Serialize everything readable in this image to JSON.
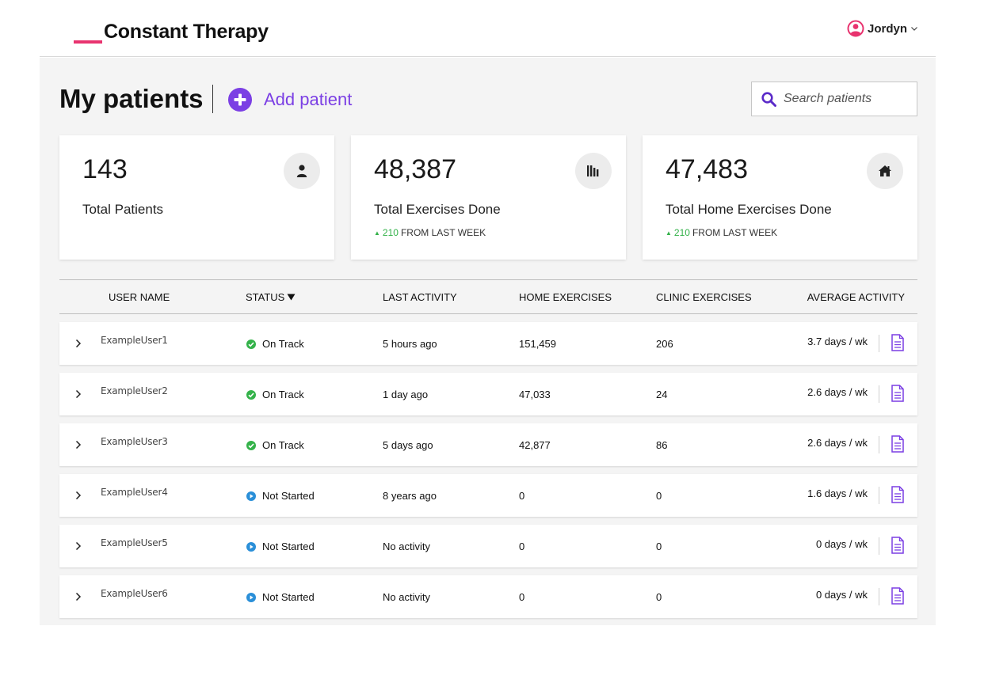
{
  "header": {
    "logo_text": "Constant Therapy",
    "user_name": "Jordyn"
  },
  "toolbar": {
    "title": "My patients",
    "add_patient_label": "Add patient",
    "search_placeholder": "Search patients"
  },
  "stats": [
    {
      "value": "143",
      "label": "Total Patients",
      "icon": "person-icon"
    },
    {
      "value": "48,387",
      "label": "Total Exercises Done",
      "delta": "210",
      "delta_suffix": "FROM LAST WEEK",
      "icon": "bar-chart-icon"
    },
    {
      "value": "47,483",
      "label": "Total Home Exercises Done",
      "delta": "210",
      "delta_suffix": "FROM LAST WEEK",
      "icon": "home-icon"
    }
  ],
  "table": {
    "columns": [
      "USER NAME",
      "STATUS",
      "LAST ACTIVITY",
      "HOME EXERCISES",
      "CLINIC EXERCISES",
      "AVERAGE ACTIVITY"
    ],
    "rows": [
      {
        "user": "ExampleUser1",
        "status": "On Track",
        "last_activity": "5 hours ago",
        "home": "151,459",
        "clinic": "206",
        "avg": "3.7 days / wk"
      },
      {
        "user": "ExampleUser2",
        "status": "On Track",
        "last_activity": "1 day ago",
        "home": "47,033",
        "clinic": "24",
        "avg": "2.6 days / wk"
      },
      {
        "user": "ExampleUser3",
        "status": "On Track",
        "last_activity": "5 days ago",
        "home": "42,877",
        "clinic": "86",
        "avg": "2.6 days / wk"
      },
      {
        "user": "ExampleUser4",
        "status": "Not Started",
        "last_activity": "8 years ago",
        "home": "0",
        "clinic": "0",
        "avg": "1.6 days / wk"
      },
      {
        "user": "ExampleUser5",
        "status": "Not Started",
        "last_activity": "No activity",
        "home": "0",
        "clinic": "0",
        "avg": "0 days / wk"
      },
      {
        "user": "ExampleUser6",
        "status": "Not Started",
        "last_activity": "No activity",
        "home": "0",
        "clinic": "0",
        "avg": "0 days / wk"
      }
    ]
  },
  "colors": {
    "brand_pink": "#e8336f",
    "accent_purple": "#7b3fe4",
    "on_track_green": "#34b24a",
    "not_started_blue": "#2a8fd8"
  }
}
